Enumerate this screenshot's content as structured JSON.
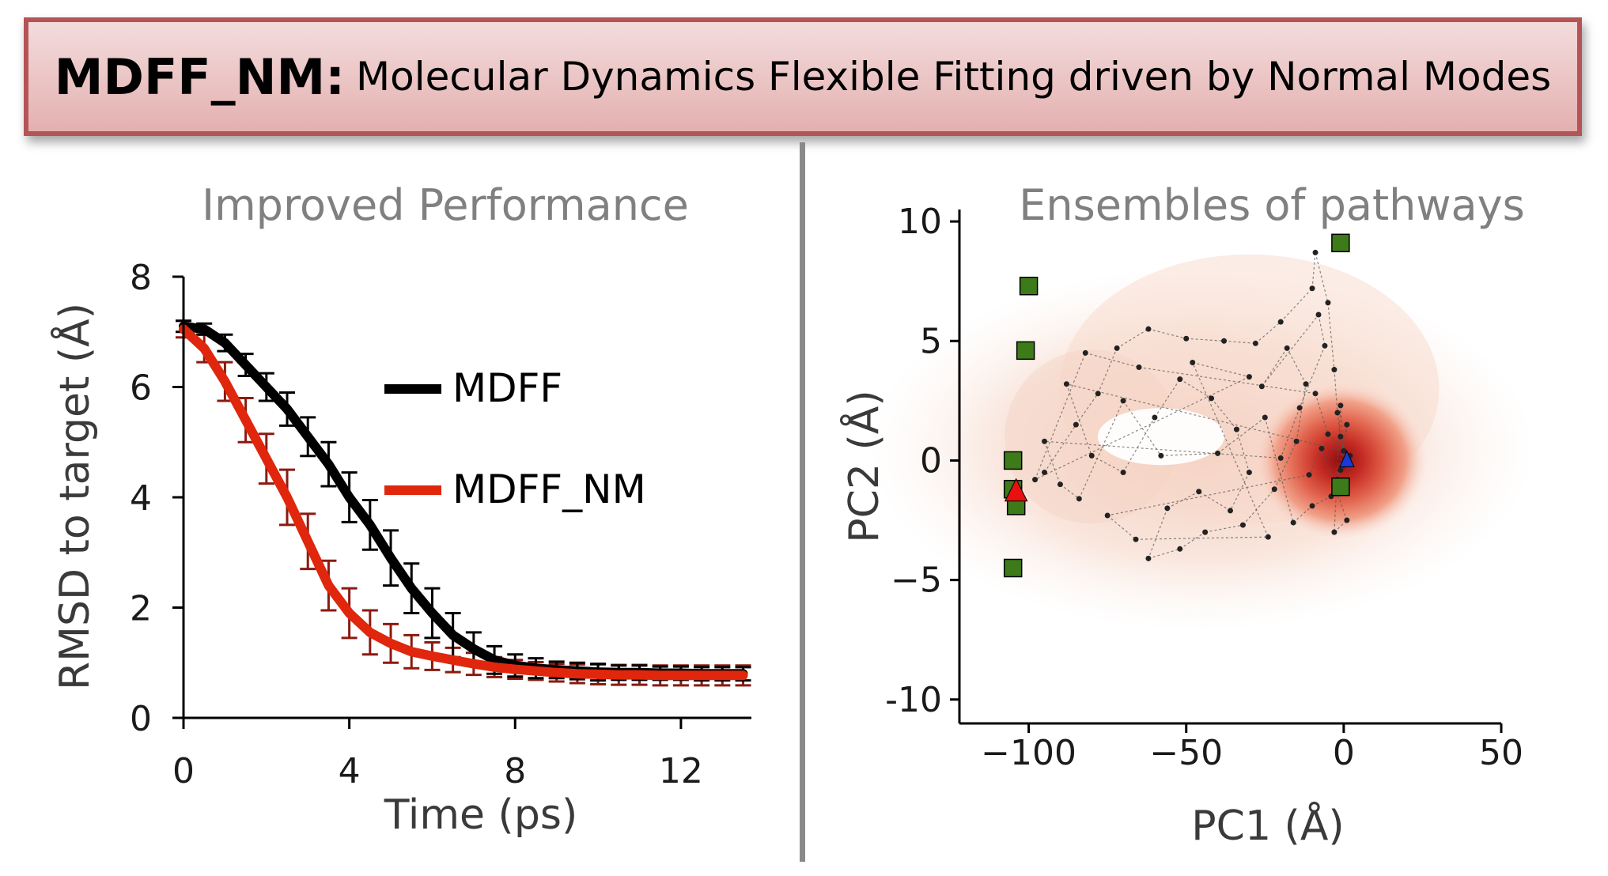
{
  "banner": {
    "title": "MDFF_NM:",
    "subtitle": "Molecular Dynamics Flexible Fitting driven by Normal Modes"
  },
  "colors": {
    "mdff": "#000000",
    "mdff_nm": "#e0260c",
    "error_nm": "#8b1a10",
    "square": "#3d7a1a",
    "triangle": "#e81010",
    "triangle_blue": "#1a3ad8"
  },
  "chart_data": [
    {
      "type": "line",
      "title": "Improved Performance",
      "xlabel": "Time (ps)",
      "ylabel": "RMSD to target (Å)",
      "xlim": [
        0,
        13.7
      ],
      "ylim": [
        0,
        8
      ],
      "xticks": [
        "0",
        "4",
        "8",
        "12"
      ],
      "yticks": [
        "0",
        "2",
        "4",
        "6",
        "8"
      ],
      "legend_position": "center-right",
      "x": [
        0,
        0.5,
        1,
        1.5,
        2,
        2.5,
        3,
        3.5,
        4,
        4.5,
        5,
        5.5,
        6,
        6.5,
        7,
        7.5,
        8,
        8.5,
        9,
        9.5,
        10,
        10.5,
        11,
        11.5,
        12,
        12.5,
        13,
        13.5
      ],
      "series": [
        {
          "name": "MDFF",
          "values": [
            7.1,
            7.05,
            6.8,
            6.4,
            6.0,
            5.6,
            5.1,
            4.6,
            4.0,
            3.5,
            2.9,
            2.35,
            1.9,
            1.5,
            1.25,
            1.05,
            0.95,
            0.9,
            0.87,
            0.85,
            0.83,
            0.82,
            0.82,
            0.81,
            0.81,
            0.8,
            0.8,
            0.8
          ],
          "errors": [
            0.1,
            0.1,
            0.15,
            0.2,
            0.25,
            0.3,
            0.35,
            0.4,
            0.45,
            0.45,
            0.5,
            0.45,
            0.45,
            0.4,
            0.3,
            0.25,
            0.2,
            0.18,
            0.15,
            0.15,
            0.15,
            0.13,
            0.13,
            0.12,
            0.12,
            0.12,
            0.12,
            0.12
          ]
        },
        {
          "name": "MDFF_NM",
          "values": [
            7.05,
            6.7,
            6.1,
            5.4,
            4.7,
            4.0,
            3.2,
            2.4,
            1.9,
            1.55,
            1.35,
            1.2,
            1.12,
            1.05,
            0.98,
            0.92,
            0.88,
            0.85,
            0.82,
            0.8,
            0.79,
            0.78,
            0.78,
            0.77,
            0.77,
            0.77,
            0.77,
            0.77
          ],
          "errors": [
            0.15,
            0.25,
            0.35,
            0.4,
            0.45,
            0.5,
            0.5,
            0.45,
            0.45,
            0.4,
            0.35,
            0.3,
            0.25,
            0.22,
            0.2,
            0.18,
            0.17,
            0.16,
            0.16,
            0.17,
            0.18,
            0.18,
            0.18,
            0.18,
            0.18,
            0.18,
            0.18,
            0.18
          ]
        }
      ]
    },
    {
      "type": "scatter",
      "title": "Ensembles of pathways",
      "xlabel": "PC1 (Å)",
      "ylabel": "PC2 (Å)",
      "xlim": [
        -122,
        50
      ],
      "ylim": [
        -11,
        10.5
      ],
      "xticks": [
        "−100",
        "−50",
        "0",
        "50"
      ],
      "yticks": [
        "10",
        "5",
        "0",
        "−5",
        "-10"
      ],
      "squares": [
        [
          -1,
          9.1
        ],
        [
          -100,
          7.3
        ],
        [
          -101,
          4.6
        ],
        [
          -105,
          0
        ],
        [
          -105,
          -1.2
        ],
        [
          -104,
          -1.9
        ],
        [
          -105,
          -4.5
        ],
        [
          -1,
          -1.1
        ]
      ],
      "triangles_red": [
        [
          -104,
          -1.3
        ]
      ],
      "triangles_blue": [
        [
          1,
          0
        ]
      ],
      "pathway_points": [
        [
          -95,
          -0.5
        ],
        [
          -85,
          1.5
        ],
        [
          -78,
          2.8
        ],
        [
          -72,
          4.7
        ],
        [
          -62,
          5.5
        ],
        [
          -50,
          5.1
        ],
        [
          -38,
          5.0
        ],
        [
          -28,
          4.9
        ],
        [
          -20,
          5.8
        ],
        [
          -10,
          7.2
        ],
        [
          -9,
          8.7
        ],
        [
          -5,
          6.6
        ],
        [
          -3,
          3.8
        ],
        [
          -2,
          2.0
        ],
        [
          -1,
          1.0
        ],
        [
          0,
          0.4
        ],
        [
          -88,
          3.2
        ],
        [
          -80,
          0.2
        ],
        [
          -70,
          -0.5
        ],
        [
          -60,
          1.8
        ],
        [
          -52,
          3.4
        ],
        [
          -42,
          2.6
        ],
        [
          -34,
          1.3
        ],
        [
          -30,
          -0.5
        ],
        [
          -36,
          -2.1
        ],
        [
          -46,
          -1.3
        ],
        [
          -56,
          -2.0
        ],
        [
          -62,
          -4.1
        ],
        [
          -52,
          -3.7
        ],
        [
          -44,
          -3.0
        ],
        [
          -32,
          -2.7
        ],
        [
          -22,
          -1.2
        ],
        [
          -15,
          0.8
        ],
        [
          -12,
          3.2
        ],
        [
          -18,
          4.7
        ],
        [
          -26,
          3.1
        ],
        [
          -8,
          6.1
        ],
        [
          -6,
          4.8
        ],
        [
          -14,
          2.2
        ],
        [
          -20,
          0.1
        ],
        [
          -95,
          0.8
        ],
        [
          -90,
          -1.0
        ],
        [
          -84,
          -1.6
        ],
        [
          -70,
          2.5
        ],
        [
          -58,
          0.2
        ],
        [
          -40,
          0.3
        ],
        [
          -25,
          1.8
        ],
        [
          -16,
          -2.6
        ],
        [
          -10,
          -1.9
        ],
        [
          -4,
          -1.5
        ],
        [
          -2,
          -0.8
        ],
        [
          1,
          1.5
        ],
        [
          0,
          -0.2
        ],
        [
          -1,
          2.3
        ],
        [
          -3,
          -3.0
        ],
        [
          1,
          -2.5
        ],
        [
          -7,
          0.5
        ],
        [
          -11,
          -0.6
        ],
        [
          -75,
          -2.3
        ],
        [
          -66,
          -3.3
        ],
        [
          -24,
          -3.2
        ],
        [
          -48,
          4.1
        ],
        [
          -30,
          3.5
        ],
        [
          -98,
          -0.8
        ],
        [
          -82,
          4.5
        ],
        [
          -65,
          3.9
        ],
        [
          -9,
          2.8
        ],
        [
          -5,
          1.1
        ],
        [
          2,
          0.2
        ],
        [
          -1,
          -0.4
        ]
      ],
      "density": {
        "outer_center": [
          -45,
          0.5
        ],
        "core_center": [
          -1,
          0.0
        ]
      }
    }
  ]
}
